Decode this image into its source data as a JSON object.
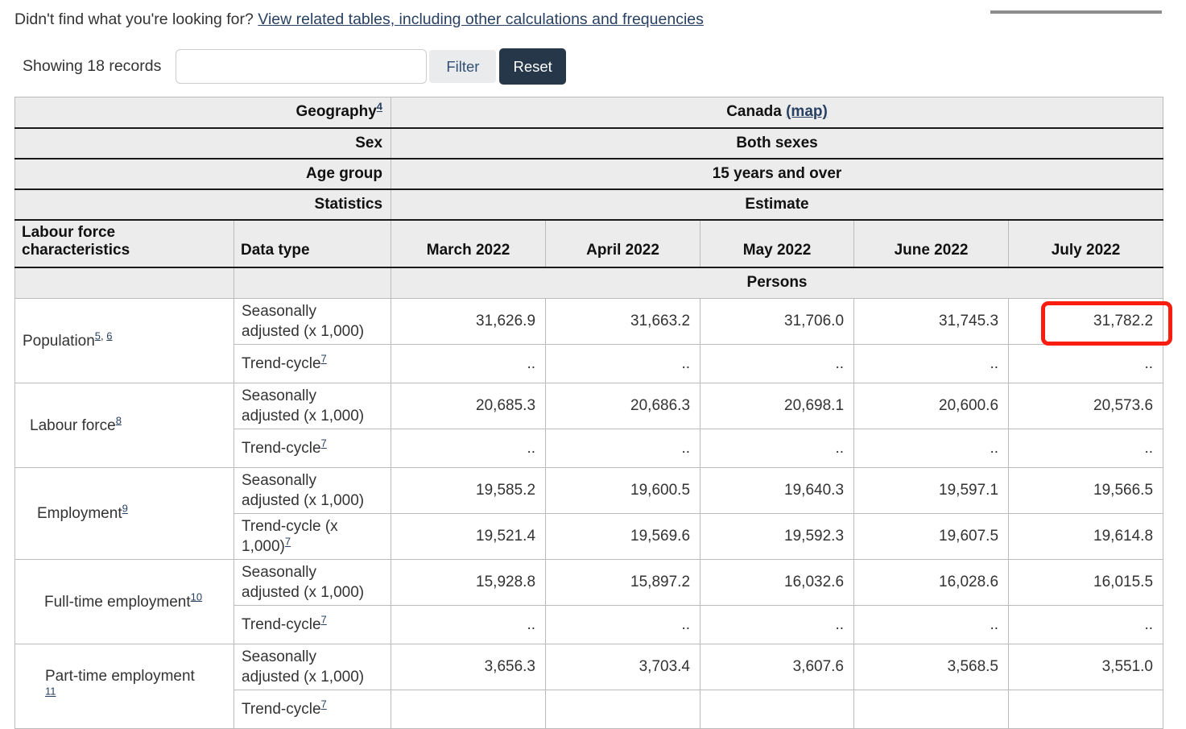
{
  "intro": {
    "question": "Didn't find what you're looking for?",
    "link": "View related tables, including other calculations and frequencies"
  },
  "toolbar": {
    "showing": "Showing 18 records",
    "filter_placeholder": "",
    "filter_value": "",
    "filter_label": "Filter",
    "reset_label": "Reset"
  },
  "table": {
    "context_rows": [
      {
        "label": "Geography",
        "label_sups": [
          "4"
        ],
        "value": "Canada",
        "value_link": "(map)"
      },
      {
        "label": "Sex",
        "label_sups": [],
        "value": "Both sexes",
        "value_link": ""
      },
      {
        "label": "Age group",
        "label_sups": [],
        "value": "15 years and over",
        "value_link": ""
      },
      {
        "label": "Statistics",
        "label_sups": [],
        "value": "Estimate",
        "value_link": ""
      }
    ],
    "columns": [
      "Labour force characteristics",
      "Data type",
      "March 2022",
      "April 2022",
      "May 2022",
      "June 2022",
      "July 2022"
    ],
    "unit_row": "Persons",
    "groups": [
      {
        "label": "Population",
        "sups": [
          "5",
          "6"
        ],
        "sup_break": false,
        "rows": [
          {
            "type": "Seasonally adjusted (x 1,000)",
            "type_sups": [],
            "values": [
              "31,626.9",
              "31,663.2",
              "31,706.0",
              "31,745.3",
              "31,782.2"
            ],
            "highlight": 4
          },
          {
            "type": "Trend-cycle",
            "type_sups": [
              "7"
            ],
            "values": [
              "..",
              "..",
              "..",
              "..",
              ".."
            ],
            "highlight": -1
          }
        ]
      },
      {
        "label": "Labour force",
        "sups": [
          "8"
        ],
        "sup_break": false,
        "rows": [
          {
            "type": "Seasonally adjusted (x 1,000)",
            "type_sups": [],
            "values": [
              "20,685.3",
              "20,686.3",
              "20,698.1",
              "20,600.6",
              "20,573.6"
            ],
            "highlight": -1
          },
          {
            "type": "Trend-cycle",
            "type_sups": [
              "7"
            ],
            "values": [
              "..",
              "..",
              "..",
              "..",
              ".."
            ],
            "highlight": -1
          }
        ]
      },
      {
        "label": "Employment",
        "sups": [
          "9"
        ],
        "sup_break": false,
        "rows": [
          {
            "type": "Seasonally adjusted (x 1,000)",
            "type_sups": [],
            "values": [
              "19,585.2",
              "19,600.5",
              "19,640.3",
              "19,597.1",
              "19,566.5"
            ],
            "highlight": -1
          },
          {
            "type": "Trend-cycle (x 1,000)",
            "type_sups": [
              "7"
            ],
            "values": [
              "19,521.4",
              "19,569.6",
              "19,592.3",
              "19,607.5",
              "19,614.8"
            ],
            "highlight": -1
          }
        ]
      },
      {
        "label": "Full-time employment",
        "sups": [
          "10"
        ],
        "sup_break": false,
        "rows": [
          {
            "type": "Seasonally adjusted (x 1,000)",
            "type_sups": [],
            "values": [
              "15,928.8",
              "15,897.2",
              "16,032.6",
              "16,028.6",
              "16,015.5"
            ],
            "highlight": -1
          },
          {
            "type": "Trend-cycle",
            "type_sups": [
              "7"
            ],
            "values": [
              "..",
              "..",
              "..",
              "..",
              ".."
            ],
            "highlight": -1
          }
        ]
      },
      {
        "label": "Part-time employment",
        "sups": [
          "11"
        ],
        "sup_break": true,
        "rows": [
          {
            "type": "Seasonally adjusted (x 1,000)",
            "type_sups": [],
            "values": [
              "3,656.3",
              "3,703.4",
              "3,607.6",
              "3,568.5",
              "3,551.0"
            ],
            "highlight": -1
          },
          {
            "type": "Trend-cycle",
            "type_sups": [
              "7"
            ],
            "values": [
              "",
              "",
              "",
              "",
              ""
            ],
            "highlight": -1
          }
        ]
      }
    ]
  },
  "colors": {
    "link": "#284162",
    "reset_button_bg": "#26374a",
    "filter_button_bg": "#eaebed",
    "header_row_bg": "#ececec",
    "highlight_red": "#f81d0f"
  }
}
